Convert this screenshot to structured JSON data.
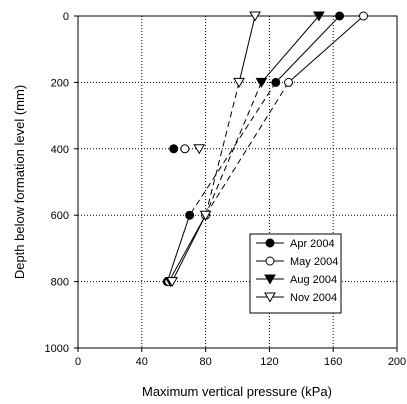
{
  "chart_data": {
    "type": "scatter",
    "title": "",
    "xlabel": "Maximum vertical pressure (kPa)",
    "ylabel": "Depth below formation level (mm)",
    "xlim": [
      0,
      200
    ],
    "ylim": [
      1000,
      0
    ],
    "x_ticks": [
      0,
      40,
      80,
      120,
      160,
      200
    ],
    "y_ticks": [
      0,
      200,
      400,
      600,
      800,
      1000
    ],
    "x_tick_labels": [
      "0",
      "40",
      "80",
      "120",
      "160",
      "200"
    ],
    "y_tick_labels": [
      "0",
      "200",
      "400",
      "600",
      "800",
      "1000"
    ],
    "grid": true,
    "legend_position": "bottom-right",
    "series": [
      {
        "name": "Apr 2004",
        "marker": "circle-filled",
        "line": "solid",
        "color": "#000000",
        "points": [
          [
            164,
            0
          ],
          [
            124,
            200
          ],
          [
            60,
            400
          ],
          [
            70,
            600
          ],
          [
            56,
            800
          ]
        ]
      },
      {
        "name": "May 2004",
        "marker": "circle-open",
        "line": "solid",
        "color": "#000000",
        "points": [
          [
            179,
            0
          ],
          [
            132,
            200
          ],
          [
            67,
            400
          ],
          [
            80,
            600
          ],
          [
            57,
            800
          ]
        ]
      },
      {
        "name": "Aug 2004",
        "marker": "triangle-filled",
        "line": "dashed",
        "color": "#000000",
        "points": [
          [
            151,
            0
          ],
          [
            115,
            200
          ],
          [
            null,
            400
          ],
          [
            null,
            600
          ],
          [
            58,
            800
          ]
        ]
      },
      {
        "name": "Nov 2004",
        "marker": "triangle-open",
        "line": "dashed",
        "color": "#000000",
        "points": [
          [
            111,
            0
          ],
          [
            101,
            200
          ],
          [
            76,
            400
          ],
          [
            80,
            600
          ],
          [
            59,
            800
          ]
        ]
      }
    ],
    "segments": [
      {
        "series": 0,
        "from": [
          164,
          0
        ],
        "to": [
          124,
          200
        ],
        "style": "solid"
      },
      {
        "series": 0,
        "from": [
          124,
          200
        ],
        "to": [
          70,
          600
        ],
        "style": "dashed"
      },
      {
        "series": 0,
        "from": [
          70,
          600
        ],
        "to": [
          56,
          800
        ],
        "style": "solid"
      },
      {
        "series": 1,
        "from": [
          179,
          0
        ],
        "to": [
          132,
          200
        ],
        "style": "solid"
      },
      {
        "series": 1,
        "from": [
          132,
          200
        ],
        "to": [
          80,
          600
        ],
        "style": "dashed"
      },
      {
        "series": 1,
        "from": [
          80,
          600
        ],
        "to": [
          57,
          800
        ],
        "style": "solid"
      },
      {
        "series": 2,
        "from": [
          151,
          0
        ],
        "to": [
          115,
          200
        ],
        "style": "solid"
      },
      {
        "series": 2,
        "from": [
          115,
          200
        ],
        "to": [
          80,
          600
        ],
        "style": "dashed"
      },
      {
        "series": 3,
        "from": [
          111,
          0
        ],
        "to": [
          101,
          200
        ],
        "style": "solid"
      },
      {
        "series": 3,
        "from": [
          101,
          200
        ],
        "to": [
          80,
          600
        ],
        "style": "dashed"
      },
      {
        "series": 3,
        "from": [
          80,
          600
        ],
        "to": [
          59,
          800
        ],
        "style": "solid"
      }
    ]
  }
}
